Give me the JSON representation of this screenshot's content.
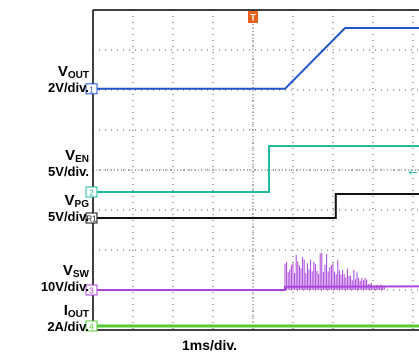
{
  "chart_data": {
    "type": "line",
    "xlabel": "1ms/div.",
    "grid": true,
    "channel_labels": [
      {
        "symbol": "V",
        "sub": "OUT",
        "scale": "2V/div."
      },
      {
        "symbol": "V",
        "sub": "EN",
        "scale": "5V/div."
      },
      {
        "symbol": "V",
        "sub": "PG",
        "scale": "5V/div."
      },
      {
        "symbol": "V",
        "sub": "SW",
        "scale": "10V/div."
      },
      {
        "symbol": "I",
        "sub": "OUT",
        "scale": "2A/div."
      }
    ],
    "markers": [
      "1",
      "2",
      "R1",
      "3",
      "4"
    ],
    "trigger_marker": "T",
    "x_divisions": 10,
    "y_divisions": 8,
    "series": [
      {
        "label": "VOUT",
        "color": "#2255cc",
        "points": [
          [
            0,
            6.03
          ],
          [
            4.8,
            6.03
          ],
          [
            6.3,
            7.55
          ],
          [
            10.5,
            7.55
          ]
        ]
      },
      {
        "label": "VEN",
        "color": "#22bba0",
        "points": [
          [
            0,
            3.45
          ],
          [
            4.4,
            3.45
          ],
          [
            4.4,
            4.6
          ],
          [
            10.5,
            4.6
          ]
        ]
      },
      {
        "label": "VPG",
        "color": "#111111",
        "points": [
          [
            0,
            2.8
          ],
          [
            6.07,
            2.8
          ],
          [
            6.07,
            3.4
          ],
          [
            10.5,
            3.4
          ]
        ]
      },
      {
        "label": "VSW",
        "color": "#aa44dd",
        "points": [
          [
            0,
            1.0
          ],
          [
            4.8,
            1.0
          ],
          [
            4.8,
            1.08
          ],
          [
            10.5,
            1.1
          ]
        ],
        "burst": {
          "from": 4.8,
          "to": 7.3,
          "top": 1.95
        }
      },
      {
        "label": "IOUT",
        "color": "#55cc33",
        "points": [
          [
            0,
            0.1
          ],
          [
            10.5,
            0.1
          ]
        ]
      }
    ]
  },
  "colors": {
    "grid": "#555555",
    "frame": "#000000"
  }
}
